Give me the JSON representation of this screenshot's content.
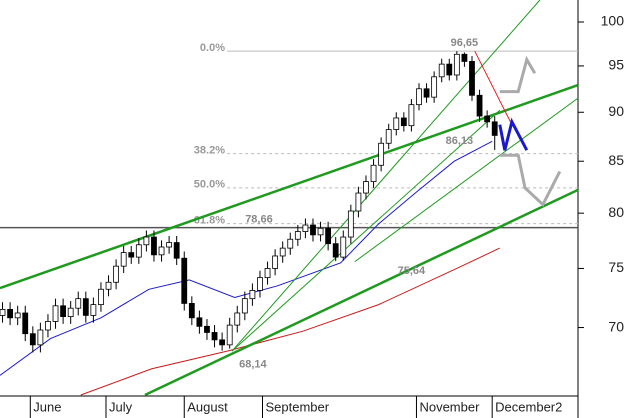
{
  "chart_data": {
    "type": "candlestick",
    "log_scale": true,
    "up_color": "#ffffff",
    "down_color": "#000000",
    "xlim": [
      140,
      369
    ],
    "ylim": [
      64.7,
      102.6
    ],
    "yticks": [
      70,
      75,
      80,
      85,
      90,
      95,
      100
    ],
    "xticks": [
      {
        "value": 152,
        "label": "June"
      },
      {
        "value": 182,
        "label": "July"
      },
      {
        "value": 213,
        "label": "August"
      },
      {
        "value": 244,
        "label": "September"
      },
      {
        "value": 305,
        "label": "November"
      },
      {
        "value": 335,
        "label": "December2"
      }
    ],
    "x": [
      141,
      144,
      147,
      150,
      153,
      156,
      159,
      162,
      165,
      168,
      171,
      174,
      177,
      180,
      183,
      186,
      189,
      192,
      195,
      198,
      201,
      204,
      207,
      210,
      213,
      216,
      219,
      222,
      225,
      228,
      231,
      234,
      237,
      240,
      243,
      246,
      249,
      252,
      255,
      258,
      261,
      264,
      267,
      270,
      273,
      276,
      279,
      282,
      285,
      288,
      291,
      294,
      297,
      300,
      303,
      306,
      309,
      312,
      315,
      318,
      321,
      324,
      327,
      330,
      333,
      336
    ],
    "open": [
      71.0,
      71.5,
      70.8,
      71.2,
      69.5,
      68.6,
      69.8,
      70.5,
      71.8,
      70.9,
      71.6,
      72.4,
      71.0,
      71.9,
      73.2,
      73.8,
      75.2,
      76.4,
      76.0,
      77.1,
      77.8,
      76.2,
      76.9,
      77.3,
      75.9,
      72.0,
      70.8,
      70.1,
      69.6,
      69.0,
      68.6,
      70.2,
      71.2,
      72.4,
      73.1,
      74.2,
      75.0,
      76.1,
      76.8,
      77.6,
      78.3,
      78.9,
      78.0,
      78.6,
      77.2,
      76.0,
      77.8,
      80.2,
      81.9,
      83.0,
      84.6,
      86.8,
      88.2,
      89.4,
      88.6,
      90.8,
      92.5,
      91.6,
      93.8,
      95.2,
      94.0,
      96.3,
      95.5,
      91.8,
      89.6,
      89.0
    ],
    "high": [
      72.1,
      72.1,
      71.8,
      71.8,
      70.1,
      70.4,
      71.1,
      72.4,
      72.4,
      72.2,
      73.0,
      73.0,
      72.5,
      73.8,
      74.4,
      75.8,
      77.0,
      77.0,
      77.7,
      78.4,
      78.4,
      77.5,
      77.9,
      77.9,
      76.5,
      72.6,
      71.4,
      70.7,
      70.2,
      69.6,
      70.8,
      71.8,
      73.0,
      73.7,
      74.8,
      75.6,
      76.7,
      77.4,
      78.2,
      78.9,
      79.5,
      79.5,
      79.2,
      79.2,
      77.8,
      78.4,
      80.8,
      82.5,
      83.6,
      85.2,
      87.4,
      88.8,
      90.0,
      90.0,
      91.4,
      93.1,
      93.1,
      94.4,
      95.8,
      95.8,
      96.65,
      96.5,
      96.1,
      92.4,
      90.2,
      89.6
    ],
    "low": [
      70.4,
      70.2,
      70.2,
      68.9,
      68.0,
      68.0,
      69.2,
      69.9,
      70.3,
      70.3,
      71.0,
      70.4,
      70.4,
      71.3,
      72.6,
      73.2,
      74.6,
      75.4,
      75.4,
      76.5,
      75.6,
      75.6,
      76.3,
      75.3,
      71.4,
      70.2,
      69.5,
      69.0,
      68.4,
      68.14,
      68.3,
      69.6,
      70.6,
      71.8,
      72.5,
      73.6,
      74.4,
      75.5,
      76.2,
      77.0,
      77.7,
      77.4,
      77.4,
      76.6,
      75.64,
      75.7,
      77.2,
      79.6,
      81.3,
      82.4,
      84.0,
      86.2,
      87.6,
      88.0,
      88.0,
      90.2,
      91.0,
      91.0,
      93.2,
      93.4,
      93.4,
      94.9,
      91.2,
      89.0,
      88.4,
      86.13
    ],
    "close": [
      71.5,
      70.8,
      71.2,
      69.5,
      68.6,
      69.8,
      70.5,
      71.8,
      70.9,
      71.6,
      72.4,
      71.0,
      71.9,
      73.2,
      73.8,
      75.2,
      76.4,
      76.0,
      77.1,
      77.8,
      76.2,
      76.9,
      77.3,
      75.9,
      72.0,
      70.8,
      70.1,
      69.6,
      69.0,
      68.6,
      70.2,
      71.2,
      72.4,
      73.1,
      74.2,
      75.0,
      76.1,
      76.8,
      77.6,
      78.3,
      78.9,
      78.0,
      78.6,
      77.2,
      76.0,
      77.8,
      80.2,
      81.9,
      83.0,
      84.6,
      86.8,
      88.2,
      89.4,
      88.6,
      90.8,
      92.5,
      91.6,
      93.8,
      95.2,
      94.0,
      96.3,
      95.5,
      91.8,
      89.6,
      89.0,
      87.6
    ],
    "lines": [
      {
        "color": "#1a1acc",
        "width": 1,
        "x": [
          140,
          160,
          180,
          199,
          215,
          233,
          250,
          275,
          290,
          305,
          320,
          335
        ],
        "values": [
          66.2,
          69.1,
          70.8,
          73.2,
          74.0,
          72.5,
          73.5,
          75.5,
          79.0,
          82.0,
          85.0,
          87.0
        ]
      },
      {
        "color": "#cc1a1a",
        "width": 1,
        "x": [
          172,
          200,
          230,
          260,
          290,
          320,
          338
        ],
        "values": [
          64.7,
          66.7,
          68.1,
          69.7,
          71.9,
          74.9,
          76.8
        ]
      },
      {
        "color": "#1f9a1f",
        "width": 2.5,
        "x": [
          140,
          369
        ],
        "values": [
          73.3,
          92.9
        ]
      },
      {
        "color": "#1f9a1f",
        "width": 2.5,
        "x": [
          197.4,
          369
        ],
        "values": [
          64.7,
          82.2
        ]
      },
      {
        "color": "#1f9a1f",
        "width": 1,
        "x": [
          231.9,
          353.9
        ],
        "values": [
          68.1,
          102.6
        ]
      },
      {
        "color": "#1f9a1f",
        "width": 1,
        "x": [
          280.6,
          369
        ],
        "values": [
          75.6,
          91.5
        ]
      },
      {
        "color": "#1f9a1f",
        "width": 1,
        "x": [
          231.9,
          338
        ],
        "values": [
          68.1,
          90.2
        ]
      },
      {
        "color": "#dd2222",
        "width": 1,
        "x": [
          328.1,
          342.8
        ],
        "values": [
          96.65,
          88.7
        ]
      },
      {
        "color": "#1a1acc",
        "width": 3,
        "x": [
          338,
          340,
          342.8,
          348.7
        ],
        "values": [
          88.7,
          86.1,
          89.0,
          86.1
        ]
      },
      {
        "color": "#aaaaaa",
        "width": 3,
        "x": [
          338,
          345.3,
          348.7,
          351.9
        ],
        "values": [
          92.2,
          92.2,
          95.7,
          94.2
        ]
      },
      {
        "color": "#aaaaaa",
        "width": 3,
        "x": [
          338,
          345.3,
          348,
          355.1,
          361.8
        ],
        "values": [
          85.6,
          85.6,
          82.4,
          80.8,
          84.0
        ]
      }
    ],
    "fib_start": 230,
    "fib_levels": [
      {
        "label": "0.0%",
        "value": 96.65
      },
      {
        "label": "38.2%",
        "value": 85.76
      },
      {
        "label": "50.0%",
        "value": 82.4
      },
      {
        "label": "61.8%",
        "value": 79.03
      }
    ],
    "hline": {
      "value": 78.66,
      "color": "#555555"
    },
    "annotations": [
      {
        "label": "96,65",
        "value": 96.65,
        "x": 324
      },
      {
        "label": "86,13",
        "value": 86.13,
        "x": 322
      },
      {
        "label": "78,66",
        "value": 78.66,
        "x": 242.6
      },
      {
        "label": "75,64",
        "value": 75.64,
        "x": 303
      },
      {
        "label": "68,14",
        "value": 68.14,
        "x": 240.2
      }
    ]
  }
}
